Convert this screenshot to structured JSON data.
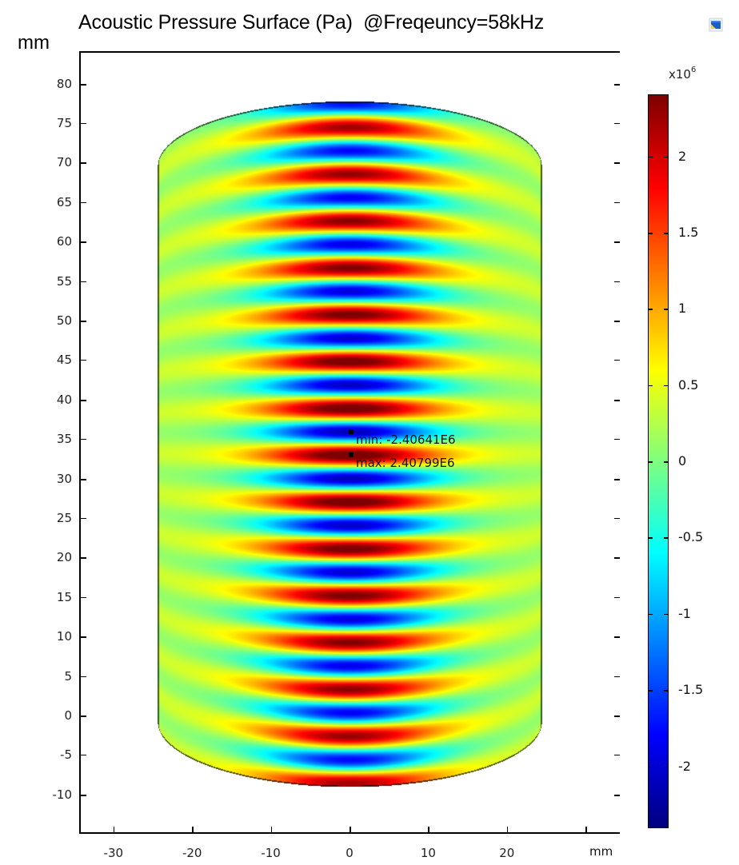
{
  "title": "Acoustic Pressure Surface (Pa)  @Freqeuncy=58kHz",
  "y_unit_label": "mm",
  "x_unit_label": "mm",
  "toolbar_icon": "image-window-icon",
  "colorbar": {
    "exponent_base": "x10",
    "exponent_power": "6",
    "colormap": "jet",
    "range": [
      -2.40641,
      2.40799
    ],
    "ticks": [
      {
        "value": 2,
        "label": "2"
      },
      {
        "value": 1.5,
        "label": "1.5"
      },
      {
        "value": 1,
        "label": "1"
      },
      {
        "value": 0.5,
        "label": "0.5"
      },
      {
        "value": 0,
        "label": "0"
      },
      {
        "value": -0.5,
        "label": "-0.5"
      },
      {
        "value": -1,
        "label": "-1"
      },
      {
        "value": -1.5,
        "label": "-1.5"
      },
      {
        "value": -2,
        "label": "-2"
      }
    ]
  },
  "annotations": {
    "min_label": "min: -2.40641E6",
    "max_label": "max: 2.40799E6",
    "min_point_mm": [
      0.2,
      36.0
    ],
    "max_point_mm": [
      0.2,
      33.1
    ]
  },
  "chart_data": {
    "type": "heatmap",
    "title": "Acoustic Pressure Surface (Pa)  @Freqeuncy=58kHz",
    "xlabel": "mm",
    "ylabel": "mm",
    "xlim": [
      -34.4,
      34.4
    ],
    "ylim": [
      -14.8,
      84.1
    ],
    "x_ticks": [
      -30,
      -20,
      -10,
      0,
      10,
      20
    ],
    "y_ticks": [
      80,
      75,
      70,
      65,
      60,
      55,
      50,
      45,
      40,
      35,
      30,
      25,
      20,
      15,
      10,
      5,
      0,
      -5,
      -10
    ],
    "colorbar_label": "x10^6",
    "colorbar_ticks": [
      2,
      1.5,
      1,
      0.5,
      0,
      -0.5,
      -1,
      -1.5,
      -2
    ],
    "value_range": [
      -2406410,
      2407990
    ],
    "min": {
      "label": "min: -2.40641E6",
      "value": -2406410
    },
    "max": {
      "label": "max: 2.40799E6",
      "value": 2407990
    },
    "geometry": {
      "shape": "cylinder-side-view",
      "half_width_mm": 24.4,
      "flat_top_mm": 69.7,
      "flat_bottom_mm": -0.7,
      "cap_height_mm": 8.2
    },
    "field": {
      "pattern": "standing-wave bands along y, centered at x=0",
      "wavelength_mm": 5.93,
      "red_peak_y_mm": [
        33.1,
        39.0,
        45.0,
        50.9,
        56.9,
        62.8,
        68.8,
        74.7,
        27.1,
        21.1,
        15.2,
        9.2,
        3.2,
        -2.7,
        -8.7
      ],
      "lateral_half_width_mm": 14,
      "peak_amplitude": 2408000.0
    }
  }
}
